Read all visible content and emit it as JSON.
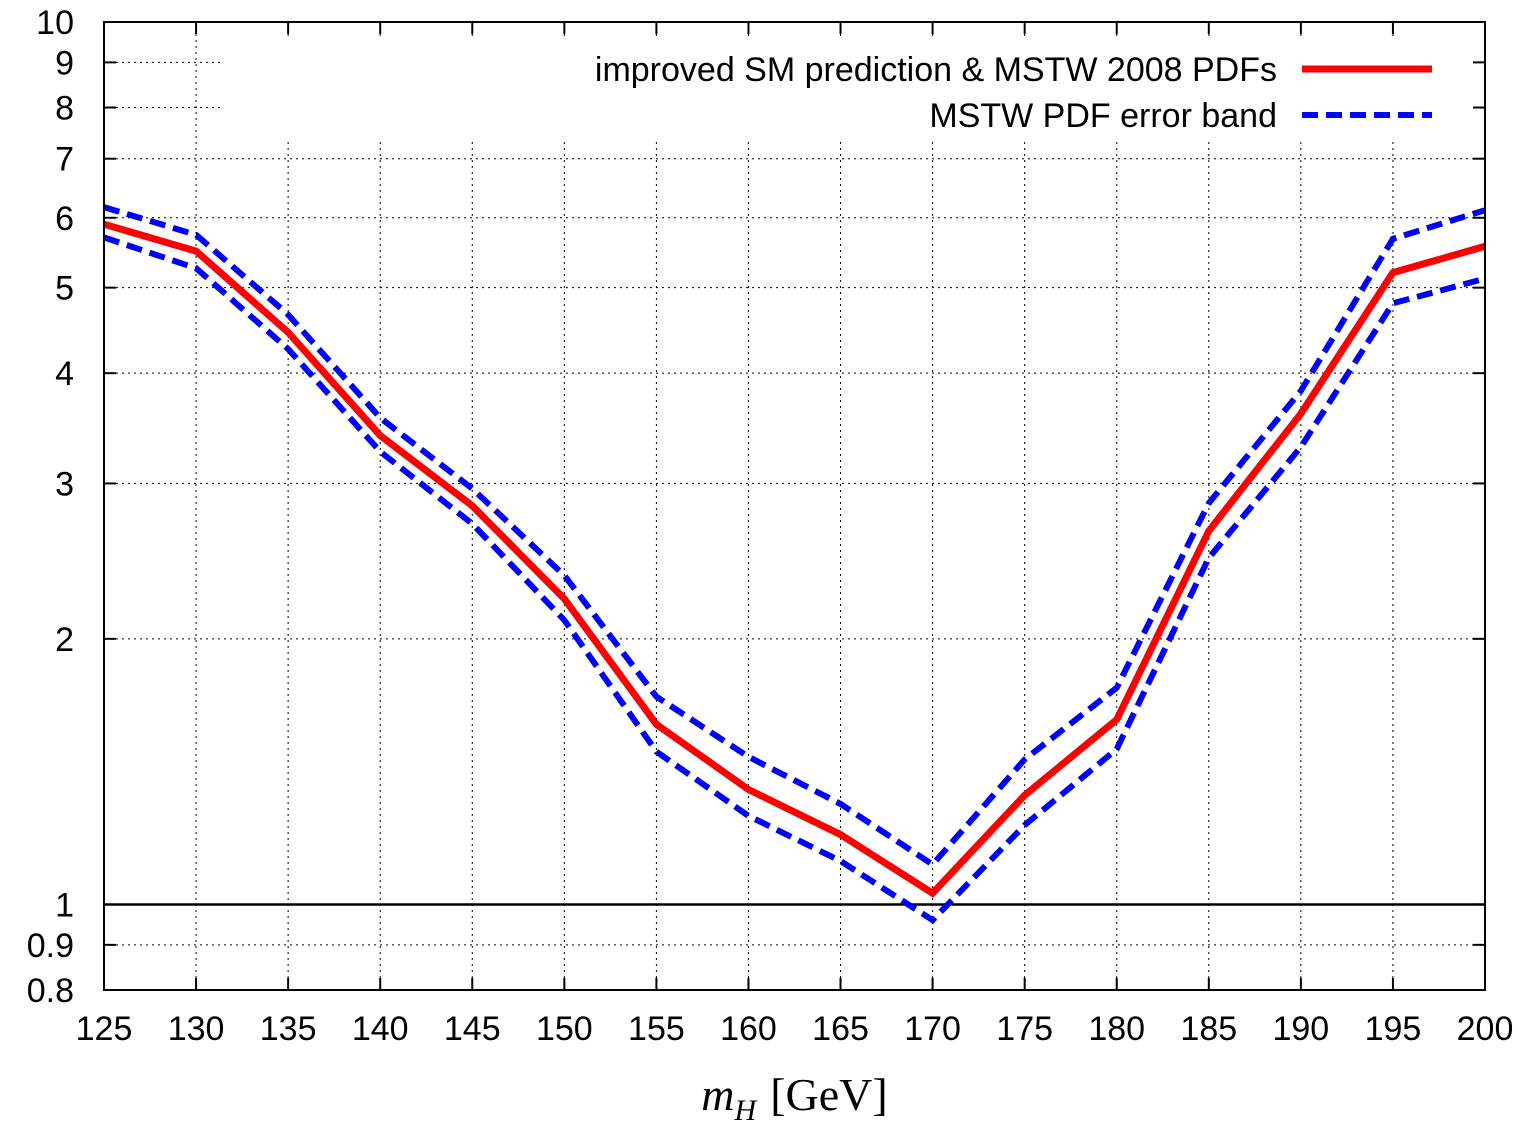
{
  "chart_data": {
    "type": "line",
    "title": "",
    "xlabel": "m_H [GeV]",
    "xlabel_parts": {
      "var": "m",
      "sub": "H",
      "unit": "[GeV]"
    },
    "ylabel": "",
    "xlim": [
      125,
      200
    ],
    "ylim": [
      0.8,
      10
    ],
    "y_scale": "log",
    "grid": true,
    "legend_position": "top-right",
    "x_ticks": [
      125,
      130,
      135,
      140,
      145,
      150,
      155,
      160,
      165,
      170,
      175,
      180,
      185,
      190,
      195,
      200
    ],
    "x_tick_labels": [
      "125",
      "130",
      "135",
      "140",
      "145",
      "150",
      "155",
      "160",
      "165",
      "170",
      "175",
      "180",
      "185",
      "190",
      "195",
      "200"
    ],
    "y_ticks": [
      0.8,
      0.9,
      1,
      2,
      3,
      4,
      5,
      6,
      7,
      8,
      9,
      10
    ],
    "y_tick_labels": [
      "0.8",
      "0.9",
      "1",
      "2",
      "3",
      "4",
      "5",
      "6",
      "7",
      "8",
      "9",
      "10"
    ],
    "reference_line": 1,
    "x": [
      125,
      130,
      135,
      140,
      145,
      150,
      155,
      160,
      165,
      170,
      175,
      180,
      185,
      190,
      195,
      200
    ],
    "series": [
      {
        "name": "improved SM prediction & MSTW 2008 PDFs",
        "color": "#ff0000",
        "style": "solid",
        "values": [
          5.9,
          5.5,
          4.45,
          3.4,
          2.83,
          2.22,
          1.6,
          1.35,
          1.2,
          1.03,
          1.33,
          1.62,
          2.65,
          3.6,
          5.2,
          5.57
        ]
      },
      {
        "name": "MSTW PDF error band",
        "color": "#0000ff",
        "style": "dashed",
        "values": [
          6.17,
          5.74,
          4.66,
          3.56,
          2.96,
          2.36,
          1.72,
          1.47,
          1.3,
          1.11,
          1.46,
          1.76,
          2.85,
          3.82,
          5.68,
          6.12
        ]
      },
      {
        "name": "",
        "color": "#0000ff",
        "style": "dashed",
        "values": [
          5.7,
          5.26,
          4.26,
          3.26,
          2.7,
          2.1,
          1.49,
          1.26,
          1.12,
          0.96,
          1.23,
          1.5,
          2.47,
          3.3,
          4.8,
          5.12
        ]
      }
    ]
  }
}
